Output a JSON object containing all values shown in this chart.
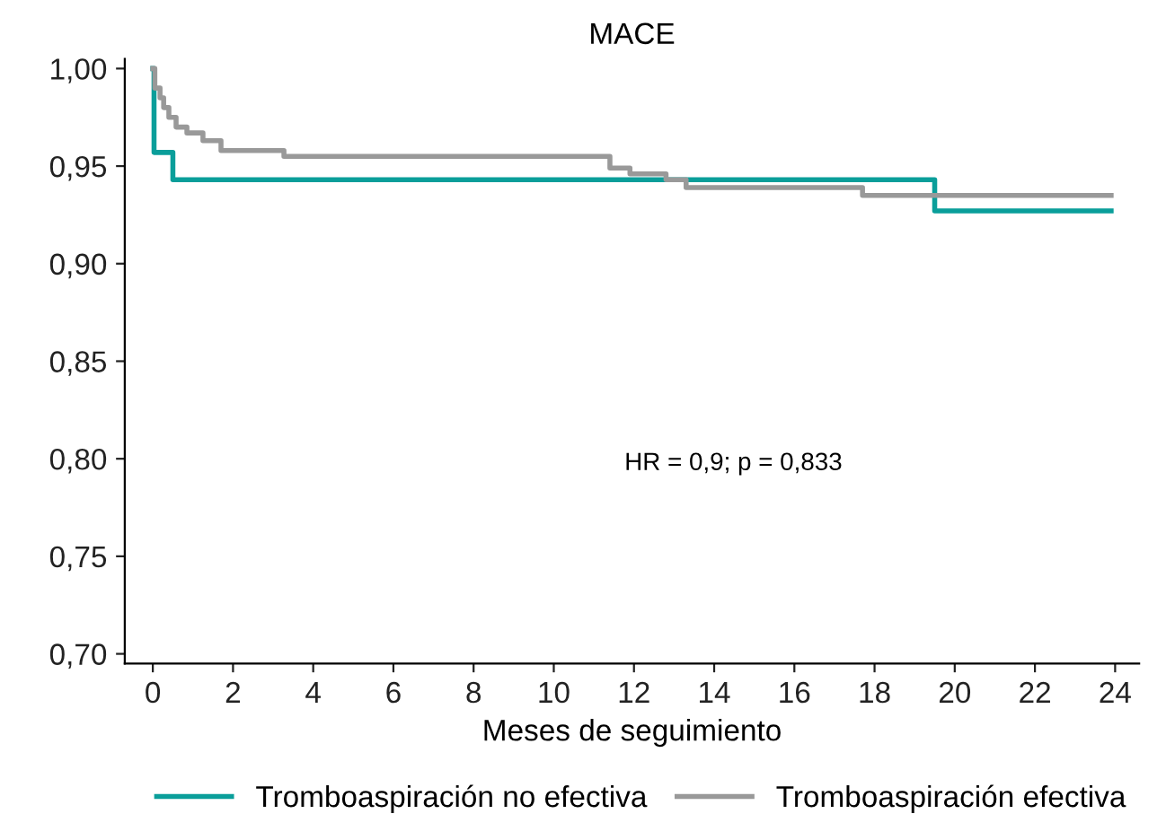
{
  "chart_data": {
    "type": "step",
    "title": "MACE",
    "xlabel": "Meses de seguimiento",
    "xlim": [
      -0.7,
      24.6
    ],
    "xticks": [
      0,
      2,
      4,
      6,
      8,
      10,
      12,
      14,
      16,
      18,
      20,
      22,
      24
    ],
    "ylim": [
      0.695,
      1.005
    ],
    "yticks": [
      {
        "value": 0.7,
        "label": "0,70"
      },
      {
        "value": 0.75,
        "label": "0,75"
      },
      {
        "value": 0.8,
        "label": "0,80"
      },
      {
        "value": 0.85,
        "label": "0,85"
      },
      {
        "value": 0.9,
        "label": "0,90"
      },
      {
        "value": 0.95,
        "label": "0,95"
      },
      {
        "value": 1.0,
        "label": "1,00"
      }
    ],
    "series": [
      {
        "name": "Tromboaspiración no efectiva",
        "color": "#0a9e9a",
        "x": [
          0,
          0.03,
          0.5,
          19.5,
          23.9
        ],
        "values": [
          1.0,
          0.957,
          0.943,
          0.927,
          0.927
        ]
      },
      {
        "name": "Tromboaspiración efectiva",
        "color": "#999999",
        "x": [
          0,
          0.05,
          0.18,
          0.27,
          0.4,
          0.58,
          0.85,
          1.25,
          1.7,
          3.27,
          11.4,
          11.9,
          12.8,
          13.3,
          17.7,
          23.9
        ],
        "values": [
          1.0,
          0.99,
          0.985,
          0.98,
          0.975,
          0.97,
          0.967,
          0.963,
          0.958,
          0.955,
          0.949,
          0.946,
          0.943,
          0.939,
          0.935,
          0.935
        ]
      }
    ],
    "annotations": [
      "HR = 0,9; p = 0,833"
    ],
    "legend": "bottom",
    "grid": false
  }
}
